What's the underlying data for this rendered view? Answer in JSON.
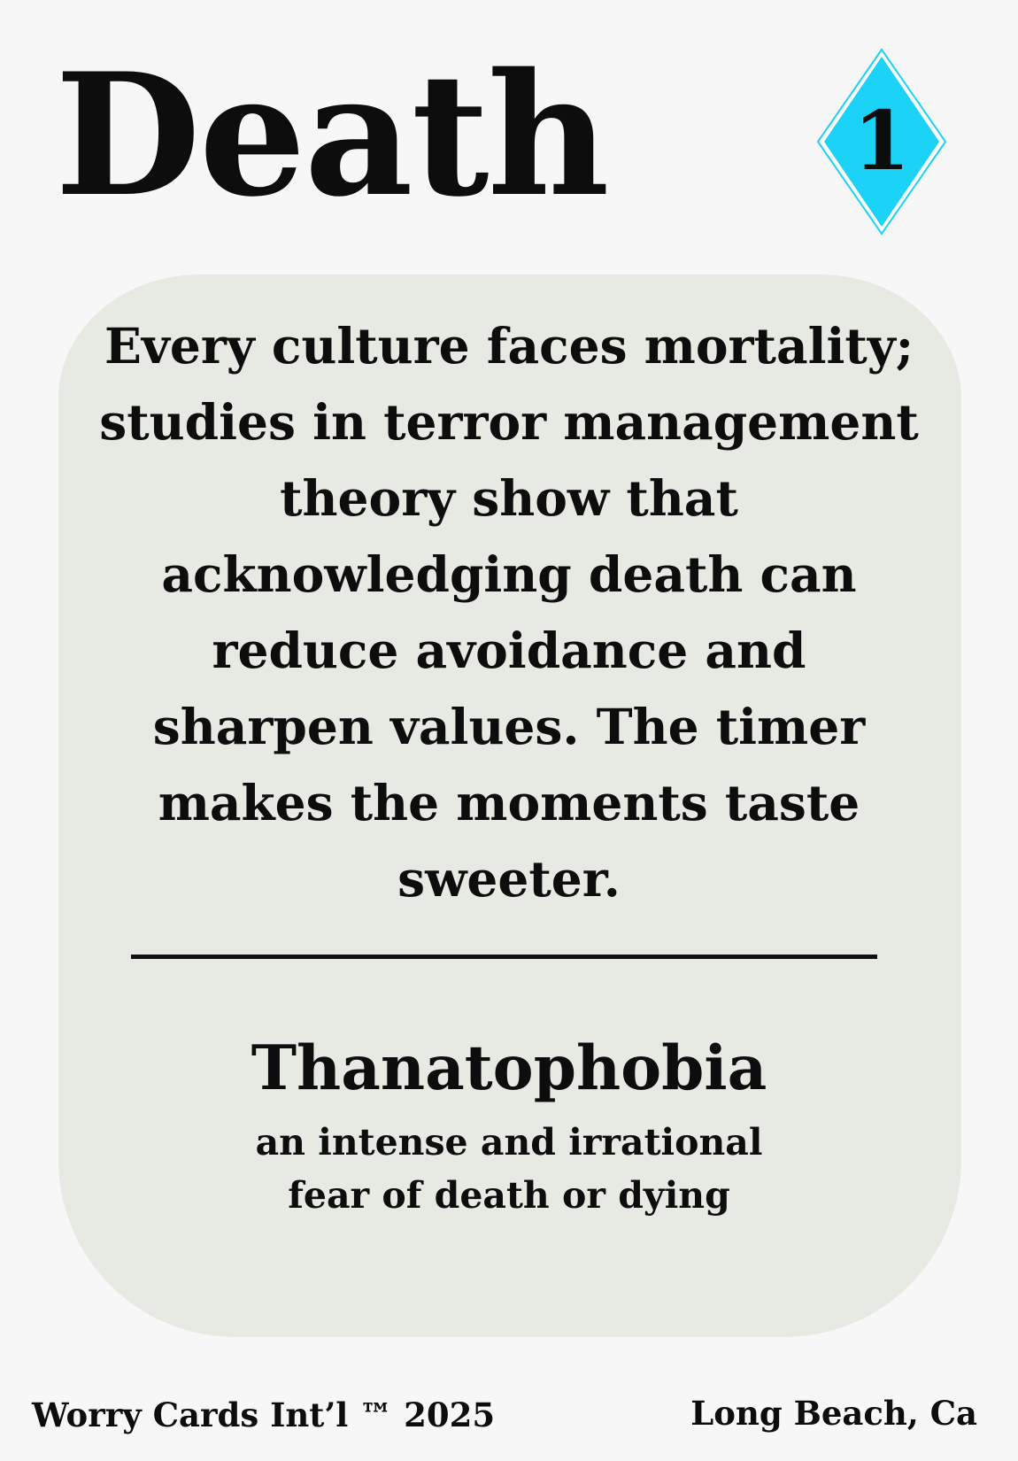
{
  "card": {
    "title": "Death",
    "number": "1",
    "badge_color": "#1bd3f7",
    "badge_shape": "diamond",
    "body_text": "Every culture faces mortality; studies in terror management theory show that acknowledging death can reduce avoidance and sharpen values. The timer makes the moments taste sweeter.",
    "term": "Thanatophobia",
    "definition_line1": "an intense and irrational",
    "definition_line2": "fear of death or dying",
    "panel_color": "#e6eae3"
  },
  "footer": {
    "publisher": "Worry Cards Int’l ™ 2025",
    "location": "Long Beach, Ca"
  }
}
